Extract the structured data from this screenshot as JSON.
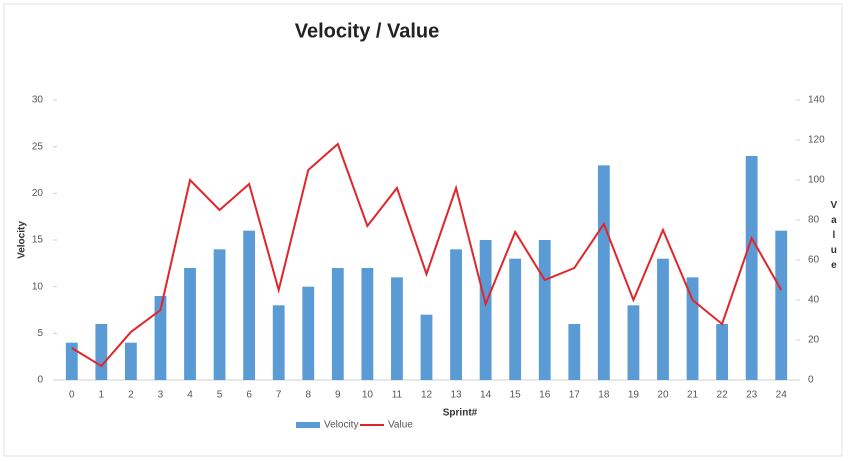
{
  "chart_data": {
    "type": "bar_line",
    "title": "Velocity / Value",
    "xlabel": "Sprint#",
    "ylabel": "Velocity",
    "y2label": "Value",
    "categories": [
      "0",
      "1",
      "2",
      "3",
      "4",
      "5",
      "6",
      "7",
      "8",
      "9",
      "10",
      "11",
      "12",
      "13",
      "14",
      "15",
      "16",
      "17",
      "18",
      "19",
      "20",
      "21",
      "22",
      "23",
      "24"
    ],
    "series": [
      {
        "name": "Velocity",
        "color": "#5b9bd5",
        "type": "bar",
        "values": [
          4,
          6,
          4,
          9,
          12,
          14,
          16,
          8,
          10,
          12,
          12,
          11,
          7,
          14,
          15,
          13,
          15,
          6,
          23,
          8,
          13,
          11,
          6,
          24,
          16
        ]
      },
      {
        "name": "Value",
        "color": "#e0262b",
        "type": "line",
        "axis": "y2",
        "values": [
          16,
          7,
          24,
          35,
          100,
          85,
          98,
          45,
          105,
          118,
          77,
          96,
          53,
          96,
          38,
          74,
          50,
          56,
          78,
          40,
          75,
          40,
          28,
          71,
          45
        ]
      }
    ],
    "ylim": [
      0,
      30
    ],
    "yticks": [
      0,
      5,
      10,
      15,
      20,
      25,
      30
    ],
    "y2lim": [
      0,
      140
    ],
    "y2ticks": [
      0,
      20,
      40,
      60,
      80,
      100,
      120,
      140
    ],
    "legend": "bottom"
  }
}
